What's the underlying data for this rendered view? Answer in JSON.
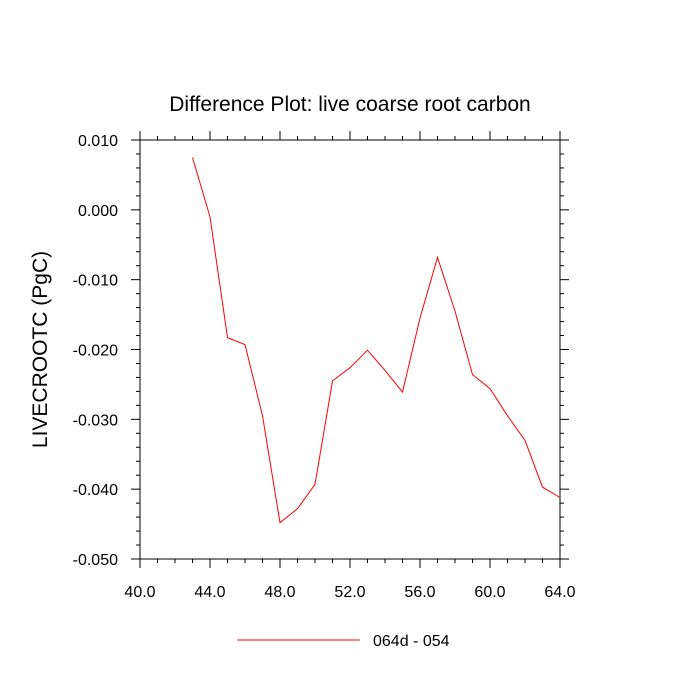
{
  "chart_data": {
    "type": "line",
    "title": "Difference Plot: live coarse root carbon",
    "xlabel": "",
    "ylabel": "LIVECROOTC  (PgC)",
    "xlim": [
      40,
      64
    ],
    "ylim": [
      -0.05,
      0.01
    ],
    "x_ticks": [
      40,
      44,
      48,
      52,
      56,
      60,
      64
    ],
    "x_tick_labels": [
      "40.0",
      "44.0",
      "48.0",
      "52.0",
      "56.0",
      "60.0",
      "64.0"
    ],
    "y_ticks": [
      0.01,
      0.0,
      -0.01,
      -0.02,
      -0.03,
      -0.04,
      -0.05
    ],
    "y_tick_labels": [
      "0.010",
      "0.000",
      "-0.010",
      "-0.020",
      "-0.030",
      "-0.040",
      "-0.050"
    ],
    "legend_position": "bottom-center",
    "series": [
      {
        "name": "064d - 054",
        "color": "#ff0000",
        "x": [
          43,
          44,
          45,
          46,
          47,
          48,
          49,
          50,
          51,
          52,
          53,
          54,
          55,
          56,
          57,
          58,
          59,
          60,
          61,
          62,
          63,
          64
        ],
        "values": [
          0.0075,
          -0.001,
          -0.0183,
          -0.0193,
          -0.0295,
          -0.0448,
          -0.0428,
          -0.0393,
          -0.0245,
          -0.0226,
          -0.0201,
          -0.023,
          -0.0261,
          -0.0155,
          -0.0068,
          -0.0145,
          -0.0236,
          -0.0256,
          -0.0295,
          -0.033,
          -0.0397,
          -0.0412
        ]
      }
    ]
  }
}
